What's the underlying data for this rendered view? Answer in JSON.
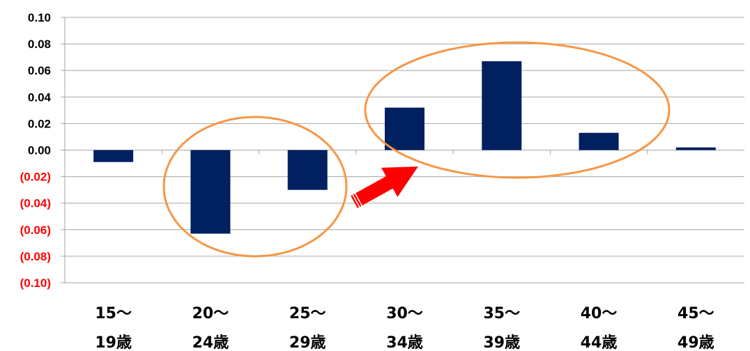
{
  "chart_data": {
    "type": "bar",
    "categories": [
      [
        "15～",
        "19歳"
      ],
      [
        "20～",
        "24歳"
      ],
      [
        "25～",
        "29歳"
      ],
      [
        "30～",
        "34歳"
      ],
      [
        "35～",
        "39歳"
      ],
      [
        "40～",
        "44歳"
      ],
      [
        "45～",
        "49歳"
      ]
    ],
    "values": [
      -0.009,
      -0.063,
      -0.03,
      0.032,
      0.067,
      0.013,
      0.002
    ],
    "ylim": [
      -0.1,
      0.1
    ],
    "yticks": [
      0.1,
      0.08,
      0.06,
      0.04,
      0.02,
      0.0,
      -0.02,
      -0.04,
      -0.06,
      -0.08,
      -0.1
    ],
    "ytick_labels": [
      "0.10",
      "0.08",
      "0.06",
      "0.04",
      "0.02",
      "0.00",
      "(0.02)",
      "(0.04)",
      "(0.06)",
      "(0.08)",
      "(0.10)"
    ],
    "grid": true,
    "title": "",
    "xlabel": "",
    "ylabel": "",
    "colors": {
      "bar": "#002060",
      "negative_label": "#ff0000",
      "positive_label": "#000000",
      "grid": "#a6a6a6",
      "highlight_ellipse": "#f79646",
      "arrow": "#ff0000"
    },
    "annotations": [
      {
        "type": "ellipse",
        "encloses_categories": [
          "20～24歳",
          "25～29歳"
        ]
      },
      {
        "type": "ellipse",
        "encloses_categories": [
          "30～34歳",
          "35～39歳",
          "40～44歳"
        ]
      },
      {
        "type": "arrow",
        "from_group": 1,
        "to_group": 2
      }
    ]
  }
}
